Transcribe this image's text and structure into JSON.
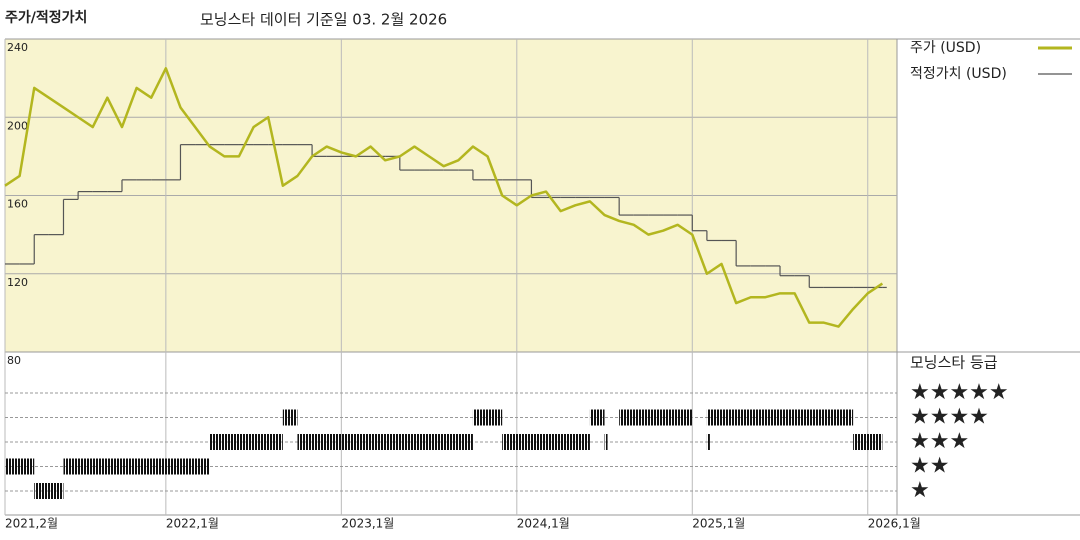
{
  "chart_data": {
    "type": "line",
    "title": "주가/적정가치",
    "subtitle": "모닝스타 데이터 기준일 03. 2월 2026",
    "x": [
      "2021-02",
      "2021-03",
      "2021-04",
      "2021-05",
      "2021-06",
      "2021-07",
      "2021-08",
      "2021-09",
      "2021-10",
      "2021-11",
      "2021-12",
      "2022-01",
      "2022-02",
      "2022-03",
      "2022-04",
      "2022-05",
      "2022-06",
      "2022-07",
      "2022-08",
      "2022-09",
      "2022-10",
      "2022-11",
      "2022-12",
      "2023-01",
      "2023-02",
      "2023-03",
      "2023-04",
      "2023-05",
      "2023-06",
      "2023-07",
      "2023-08",
      "2023-09",
      "2023-10",
      "2023-11",
      "2023-12",
      "2024-01",
      "2024-02",
      "2024-03",
      "2024-04",
      "2024-05",
      "2024-06",
      "2024-07",
      "2024-08",
      "2024-09",
      "2024-10",
      "2024-11",
      "2024-12",
      "2025-01",
      "2025-02",
      "2025-03",
      "2025-04",
      "2025-05",
      "2025-06",
      "2025-07",
      "2025-08",
      "2025-09",
      "2025-10",
      "2025-11",
      "2025-12",
      "2026-01",
      "2026-02"
    ],
    "series": [
      {
        "name": "주가 (USD)",
        "color": "#b3b61f",
        "values": [
          165,
          170,
          215,
          210,
          205,
          200,
          195,
          210,
          195,
          215,
          210,
          225,
          205,
          195,
          185,
          180,
          180,
          195,
          200,
          165,
          170,
          180,
          185,
          182,
          180,
          185,
          178,
          180,
          185,
          180,
          175,
          178,
          185,
          180,
          160,
          155,
          160,
          162,
          152,
          155,
          157,
          150,
          147,
          145,
          140,
          142,
          145,
          140,
          120,
          125,
          105,
          108,
          108,
          110,
          110,
          95,
          95,
          93,
          102,
          110,
          115
        ]
      },
      {
        "name": "적정가치 (USD)",
        "color": "#555555",
        "step": true,
        "values": [
          125,
          125,
          140,
          140,
          158,
          162,
          162,
          162,
          168,
          168,
          168,
          168,
          186,
          186,
          186,
          186,
          186,
          186,
          186,
          186,
          186,
          180,
          180,
          180,
          180,
          180,
          180,
          173,
          173,
          173,
          173,
          173,
          168,
          168,
          168,
          168,
          159,
          159,
          159,
          159,
          159,
          159,
          150,
          150,
          150,
          150,
          150,
          142,
          137,
          137,
          124,
          124,
          124,
          119,
          119,
          113,
          113,
          113,
          113,
          113,
          113
        ]
      }
    ],
    "xlim": [
      "2021-02",
      "2026-03"
    ],
    "xticks": [
      {
        "value": "2021-02",
        "label": "2021,2월"
      },
      {
        "value": "2022-01",
        "label": "2022,1월"
      },
      {
        "value": "2023-01",
        "label": "2023,1월"
      },
      {
        "value": "2024-01",
        "label": "2024,1월"
      },
      {
        "value": "2025-01",
        "label": "2025,1월"
      },
      {
        "value": "2026-01",
        "label": "2026,1월"
      }
    ],
    "ylim": [
      80,
      240
    ],
    "yticks": [
      80,
      120,
      160,
      200,
      240
    ],
    "grid": true,
    "rating_title": "모닝스타 등급",
    "rating_ticks": [
      {
        "value": 5,
        "label": "★★★★★"
      },
      {
        "value": 4,
        "label": "★★★★"
      },
      {
        "value": 3,
        "label": "★★★"
      },
      {
        "value": 2,
        "label": "★★"
      },
      {
        "value": 1,
        "label": "★"
      }
    ],
    "ratings": [
      {
        "stars": 2,
        "start": "2021-02",
        "end": "2021-04"
      },
      {
        "stars": 1,
        "start": "2021-04",
        "end": "2021-06"
      },
      {
        "stars": 2,
        "start": "2021-06",
        "end": "2022-04"
      },
      {
        "stars": 3,
        "start": "2022-04",
        "end": "2022-09"
      },
      {
        "stars": 4,
        "start": "2022-09",
        "end": "2022-10"
      },
      {
        "stars": 3,
        "start": "2022-10",
        "end": "2023-10"
      },
      {
        "stars": 4,
        "start": "2023-10",
        "end": "2023-12"
      },
      {
        "stars": 3,
        "start": "2023-12",
        "end": "2024-06"
      },
      {
        "stars": 4,
        "start": "2024-06",
        "end": "2024-07"
      },
      {
        "stars": 3,
        "start": "2024-07",
        "end": "2024-07"
      },
      {
        "stars": 4,
        "start": "2024-08",
        "end": "2025-01"
      },
      {
        "stars": 3,
        "start": "2025-02",
        "end": "2025-02"
      },
      {
        "stars": 4,
        "start": "2025-02",
        "end": "2025-12"
      },
      {
        "stars": 3,
        "start": "2025-12",
        "end": "2026-02"
      }
    ]
  }
}
